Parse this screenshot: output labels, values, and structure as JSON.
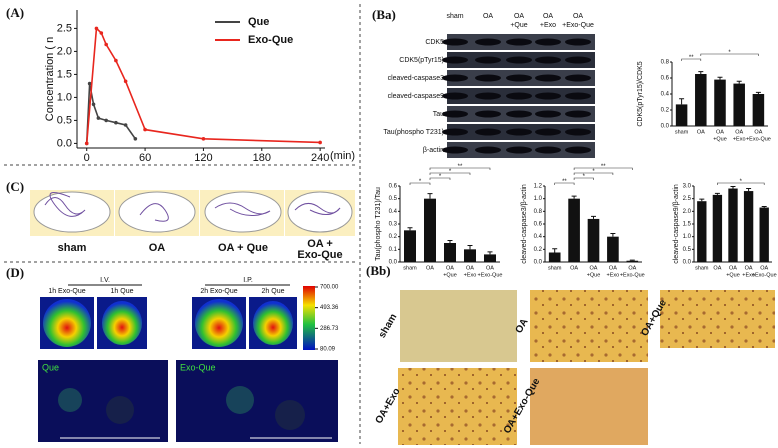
{
  "panels": {
    "a": "(A)",
    "ba": "(Ba)",
    "bb": "(Bb)",
    "c": "(C)",
    "d": "(D)"
  },
  "chart_data": [
    {
      "type": "line",
      "ylabel": "Concentration ( n",
      "xlabel": "(min)",
      "xlim": [
        -10,
        245
      ],
      "xticks": [
        0,
        60,
        120,
        180,
        240
      ],
      "ylim": [
        -0.1,
        2.9
      ],
      "yticks": [
        {
          "value": 0,
          "label": "0.0"
        },
        {
          "value": 0.5,
          "label": "0.5"
        },
        {
          "value": 1,
          "label": "1.0"
        },
        {
          "value": 1.5,
          "label": "1.5"
        },
        {
          "value": 2,
          "label": "2.0"
        },
        {
          "value": 2.5,
          "label": "2.5"
        }
      ],
      "series": [
        {
          "name": "Que",
          "color": "#444444",
          "x": [
            0,
            3,
            7,
            12,
            20,
            30,
            40,
            50
          ],
          "values": [
            0,
            1.3,
            0.85,
            0.55,
            0.5,
            0.45,
            0.4,
            0.1
          ]
        },
        {
          "name": "Exo-Que",
          "color": "#e8261e",
          "x": [
            0,
            10,
            15,
            20,
            30,
            40,
            60,
            120,
            240
          ],
          "values": [
            0,
            2.5,
            2.4,
            2.15,
            1.8,
            1.35,
            0.3,
            0.1,
            0.02
          ]
        }
      ]
    },
    {
      "type": "bar",
      "ylabel": "CDK5(pTyr15)/CDK5",
      "color": "#111111",
      "categories": [
        [
          "sham"
        ],
        [
          "OA"
        ],
        [
          "OA",
          "+Que"
        ],
        [
          "OA",
          "+Exo"
        ],
        [
          "OA",
          "+Exo-Que"
        ]
      ],
      "values": [
        0.27,
        0.65,
        0.58,
        0.53,
        0.4
      ],
      "errors": [
        0.07,
        0.03,
        0.03,
        0.03,
        0.02
      ],
      "ylim": [
        0,
        0.8
      ],
      "yticks": [
        {
          "value": 0,
          "label": "0.0"
        },
        {
          "value": 0.2,
          "label": "0.2"
        },
        {
          "value": 0.4,
          "label": "0.4"
        },
        {
          "value": 0.6,
          "label": "0.6"
        },
        {
          "value": 0.8,
          "label": "0.8"
        }
      ],
      "annotations": [
        "**",
        "*"
      ]
    },
    {
      "type": "bar",
      "ylabel": "Tau(phospho T231)/Tau",
      "color": "#111111",
      "categories": [
        [
          "sham"
        ],
        [
          "OA"
        ],
        [
          "OA",
          "+Que"
        ],
        [
          "OA",
          "+Exo"
        ],
        [
          "OA",
          "+Exo-Que"
        ]
      ],
      "values": [
        0.25,
        0.5,
        0.15,
        0.1,
        0.06
      ],
      "errors": [
        0.02,
        0.04,
        0.02,
        0.03,
        0.02
      ],
      "ylim": [
        0,
        0.6
      ],
      "yticks": [
        {
          "value": 0,
          "label": "0.0"
        },
        {
          "value": 0.1,
          "label": "0.1"
        },
        {
          "value": 0.2,
          "label": "0.2"
        },
        {
          "value": 0.3,
          "label": "0.3"
        },
        {
          "value": 0.4,
          "label": "0.4"
        },
        {
          "value": 0.5,
          "label": "0.5"
        },
        {
          "value": 0.6,
          "label": "0.6"
        }
      ],
      "annotations": [
        "*",
        "*",
        "*",
        "**"
      ]
    },
    {
      "type": "bar",
      "ylabel": "cleaved-caspase3/β-actin",
      "color": "#111111",
      "categories": [
        [
          "sham"
        ],
        [
          "OA"
        ],
        [
          "OA",
          "+Que"
        ],
        [
          "OA",
          "+Exo"
        ],
        [
          "OA",
          "+Exo-Que"
        ]
      ],
      "values": [
        0.15,
        1.0,
        0.68,
        0.4,
        0.02
      ],
      "errors": [
        0.06,
        0.04,
        0.04,
        0.05,
        0.01
      ],
      "ylim": [
        0,
        1.2
      ],
      "yticks": [
        {
          "value": 0,
          "label": "0.0"
        },
        {
          "value": 0.2,
          "label": "0.2"
        },
        {
          "value": 0.4,
          "label": "0.4"
        },
        {
          "value": 0.6,
          "label": "0.6"
        },
        {
          "value": 0.8,
          "label": "0.8"
        },
        {
          "value": 1,
          "label": "1.0"
        },
        {
          "value": 1.2,
          "label": "1.2"
        }
      ],
      "annotations": [
        "**",
        "*",
        "*",
        "**"
      ]
    },
    {
      "type": "bar",
      "ylabel": "cleaved-caspase9/β-actin",
      "color": "#111111",
      "categories": [
        [
          "sham"
        ],
        [
          "OA"
        ],
        [
          "OA",
          "+Que"
        ],
        [
          "OA",
          "+Exo"
        ],
        [
          "OA",
          "+Exo-Que"
        ]
      ],
      "values": [
        2.4,
        2.65,
        2.9,
        2.8,
        2.15
      ],
      "errors": [
        0.08,
        0.06,
        0.08,
        0.1,
        0.04
      ],
      "ylim": [
        0,
        3
      ],
      "yticks": [
        {
          "value": 0,
          "label": "0.0"
        },
        {
          "value": 0.5,
          "label": "0.5"
        },
        {
          "value": 1,
          "label": "1.0"
        },
        {
          "value": 1.5,
          "label": "1.5"
        },
        {
          "value": 2,
          "label": "2.0"
        },
        {
          "value": 2.5,
          "label": "2.5"
        },
        {
          "value": 3,
          "label": "3.0"
        }
      ],
      "annotations": [
        "*"
      ]
    }
  ],
  "blot": {
    "columns": [
      [
        "sham"
      ],
      [
        "OA"
      ],
      [
        "OA",
        "+Que"
      ],
      [
        "OA",
        "+Exo"
      ],
      [
        "OA",
        "+Exo-Que"
      ]
    ],
    "rows": [
      "CDK5",
      "CDK5(pTyr15)",
      "cleaved-caspase3",
      "cleaved-caspase9",
      "Tau",
      "Tau(phospho T231)",
      "β-actin"
    ]
  },
  "maze": {
    "labels": [
      [
        "sham"
      ],
      [
        "OA"
      ],
      [
        "OA + Que"
      ],
      [
        "OA +",
        "Exo-Que"
      ]
    ]
  },
  "imaging": {
    "routes": [
      "I.V.",
      "I.P."
    ],
    "labels": [
      "1h Exo-Que",
      "1h Que",
      "2h Exo-Que",
      "2h Que"
    ],
    "colorbar": [
      {
        "value": 700,
        "label": "700.00"
      },
      {
        "value": 493.36,
        "label": "493.36"
      },
      {
        "value": 286.73,
        "label": "286.73"
      },
      {
        "value": 80.09,
        "label": "80.09"
      }
    ],
    "fluorescence": [
      "Que",
      "Exo-Que"
    ]
  },
  "histology": {
    "labels": [
      "sham",
      "OA",
      "OA+Que",
      "OA+Exo",
      "OA+Exo-Que"
    ]
  }
}
